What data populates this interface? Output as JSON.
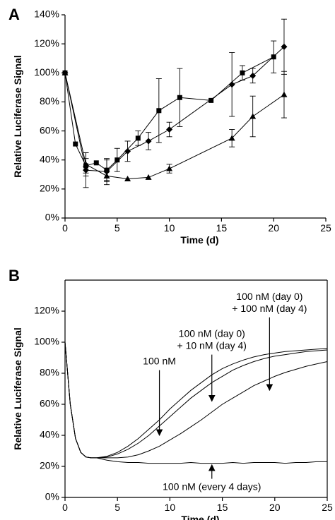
{
  "chart_data": [
    {
      "panel_label": "A",
      "type": "line",
      "xlabel": "Time (d)",
      "ylabel": "Relative Luciferase Signal",
      "xlim": [
        0,
        25
      ],
      "ylim": [
        0,
        140
      ],
      "xticks": [
        "0",
        "5",
        "10",
        "15",
        "20",
        "25"
      ],
      "yticks": [
        "0%",
        "20%",
        "40%",
        "60%",
        "80%",
        "100%",
        "120%",
        "140%"
      ],
      "series": [
        {
          "marker": "square",
          "x": [
            0,
            1,
            2,
            3,
            4,
            5,
            7,
            9,
            11,
            14,
            17,
            20
          ],
          "y": [
            100,
            51,
            36,
            38,
            33,
            40,
            55,
            74,
            83,
            81,
            100,
            111
          ],
          "err": [
            0,
            0,
            5,
            0,
            7,
            8,
            5,
            22,
            20,
            0,
            5,
            11
          ]
        },
        {
          "marker": "diamond",
          "x": [
            0,
            2,
            4,
            6,
            8,
            10,
            16,
            18,
            21
          ],
          "y": [
            100,
            33,
            32,
            46,
            53,
            61,
            92,
            98,
            118
          ],
          "err": [
            0,
            12,
            9,
            7,
            6,
            5,
            22,
            5,
            19
          ]
        },
        {
          "marker": "triangle",
          "x": [
            0,
            2,
            4,
            6,
            8,
            10,
            16,
            18,
            21
          ],
          "y": [
            100,
            37,
            29,
            27,
            28,
            34,
            55,
            70,
            85
          ],
          "err": [
            0,
            8,
            4,
            0,
            0,
            3,
            6,
            14,
            16
          ]
        }
      ]
    },
    {
      "panel_label": "B",
      "type": "line",
      "xlabel": "Time (d)",
      "ylabel": "Relative Luciferase Signal",
      "xlim": [
        0,
        25
      ],
      "ylim": [
        0,
        140
      ],
      "xticks": [
        "0",
        "5",
        "10",
        "15",
        "20",
        "25"
      ],
      "yticks": [
        "0%",
        "20%",
        "40%",
        "60%",
        "80%",
        "100%",
        "120%"
      ],
      "series": [
        {
          "x": [
            0,
            0.5,
            1,
            1.5,
            2,
            2.5,
            3,
            4,
            5,
            6,
            7,
            8,
            9,
            10,
            11,
            12,
            13,
            14,
            15,
            16,
            17,
            18,
            19,
            20,
            21,
            22,
            23,
            24,
            25
          ],
          "y": [
            100,
            60,
            38,
            29,
            26,
            25.5,
            25.5,
            26.5,
            29,
            33,
            38,
            44,
            50,
            57,
            63,
            69,
            74,
            79,
            83,
            86,
            88.5,
            90.5,
            92,
            93,
            94,
            94.5,
            95,
            95.5,
            96
          ]
        },
        {
          "x": [
            0,
            0.5,
            1,
            1.5,
            2,
            2.5,
            3,
            4,
            5,
            6,
            7,
            8,
            9,
            10,
            11,
            12,
            13,
            14,
            15,
            16,
            17,
            18,
            19,
            20,
            21,
            22,
            23,
            24,
            25
          ],
          "y": [
            100,
            60,
            38,
            29,
            26,
            25.5,
            25.5,
            26,
            28,
            31,
            35,
            40,
            46,
            52,
            58,
            64,
            69,
            74,
            78,
            82,
            85,
            87.5,
            89.5,
            91,
            92,
            93,
            94,
            94.5,
            95
          ]
        },
        {
          "x": [
            0,
            0.5,
            1,
            1.5,
            2,
            2.5,
            3,
            4,
            5,
            6,
            7,
            8,
            9,
            10,
            11,
            12,
            13,
            14,
            15,
            16,
            17,
            18,
            19,
            20,
            21,
            22,
            23,
            24,
            25
          ],
          "y": [
            100,
            60,
            38,
            29,
            26,
            25.5,
            25.5,
            25.5,
            25.5,
            26,
            27.5,
            30,
            33,
            37,
            41,
            45.5,
            50,
            55,
            60,
            64,
            68,
            72,
            75,
            78,
            80.5,
            82.5,
            84.5,
            86,
            87.5
          ]
        },
        {
          "x": [
            0,
            0.5,
            1,
            1.5,
            2,
            2.5,
            3,
            4,
            5,
            6,
            7,
            8,
            9,
            10,
            11,
            12,
            13,
            14,
            15,
            16,
            17,
            18,
            19,
            20,
            21,
            22,
            23,
            24,
            25
          ],
          "y": [
            100,
            60,
            38,
            29,
            26,
            25.5,
            25.5,
            24,
            23,
            22.5,
            22.5,
            22,
            22,
            22,
            22,
            22.5,
            22,
            22,
            22,
            22.5,
            22,
            22.5,
            22.5,
            22.5,
            22,
            22.5,
            22.5,
            23,
            23
          ]
        }
      ],
      "annotations": [
        {
          "lines": [
            "100 nM"
          ],
          "arrow_from": [
            9,
            82
          ],
          "arrow_to": [
            9,
            40
          ]
        },
        {
          "lines": [
            "100 nM (day 0)",
            "+ 10 nM (day 4)"
          ],
          "arrow_from": [
            14,
            92
          ],
          "arrow_to": [
            14,
            62
          ]
        },
        {
          "lines": [
            "100 nM (day 0)",
            "+ 100 nM (day 4)"
          ],
          "arrow_from": [
            19.5,
            116
          ],
          "arrow_to": [
            19.5,
            69
          ]
        },
        {
          "lines": [
            "100 nM (every 4 days)"
          ],
          "arrow_from": [
            14,
            12
          ],
          "arrow_to": [
            14,
            21
          ]
        }
      ]
    }
  ]
}
